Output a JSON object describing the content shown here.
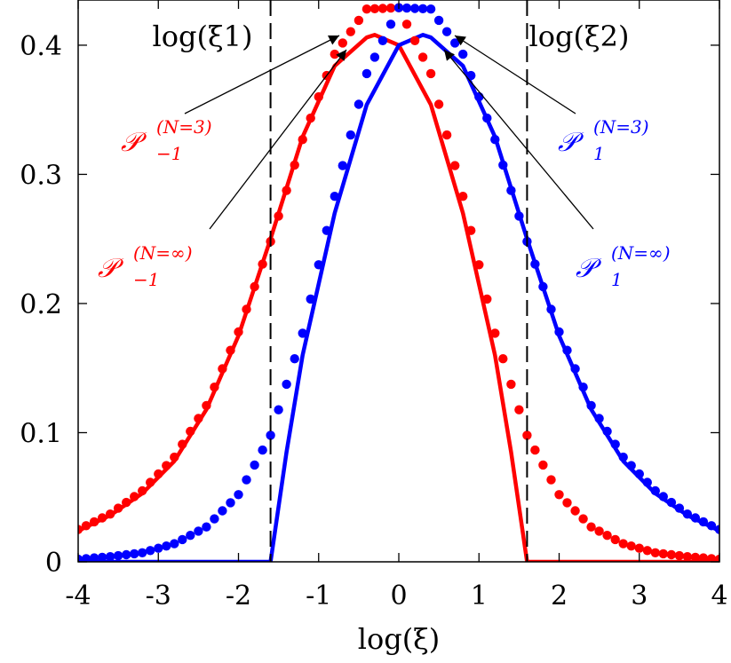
{
  "chart_data": {
    "type": "line",
    "xlabel": "log(ξ)",
    "ylabel": "",
    "xlim": [
      -4,
      4
    ],
    "ylim": [
      0,
      0.435
    ],
    "x_ticks": [
      "-4",
      "-3",
      "-2",
      "-1",
      "0",
      "1",
      "2",
      "3",
      "4"
    ],
    "y_ticks": [
      "0",
      "0.1",
      "0.2",
      "0.3",
      "0.4"
    ],
    "y_tick_values": [
      0,
      0.1,
      0.2,
      0.3,
      0.4
    ],
    "vlines": [
      {
        "label": "log(ξ1)",
        "x": -1.6
      },
      {
        "label": "log(ξ2)",
        "x": 1.6
      }
    ],
    "colors": {
      "red": "#ff0000",
      "blue": "#0000ff"
    },
    "series": [
      {
        "name": "𝒫-1(N=3)",
        "style": "solid",
        "color": "red",
        "x": [
          -4,
          -3.6,
          -3.2,
          -2.8,
          -2.4,
          -2.0,
          -1.6,
          -1.2,
          -0.8,
          -0.4,
          -0.3,
          0.0,
          0.4,
          0.8,
          1.2,
          1.4,
          1.6,
          2.0,
          3.0,
          4.0
        ],
        "y": [
          0.024,
          0.036,
          0.053,
          0.078,
          0.118,
          0.175,
          0.25,
          0.329,
          0.384,
          0.406,
          0.408,
          0.4,
          0.354,
          0.27,
          0.16,
          0.085,
          0.0,
          0.0,
          0.0,
          0.0
        ]
      },
      {
        "name": "𝒫1(N=3)",
        "style": "solid",
        "color": "blue",
        "x": [
          -4.0,
          -3.0,
          -2.0,
          -1.6,
          -1.4,
          -1.2,
          -0.8,
          -0.4,
          0.0,
          0.3,
          0.4,
          0.8,
          1.2,
          1.6,
          2.0,
          2.4,
          2.8,
          3.2,
          3.6,
          4.0
        ],
        "y": [
          0.0,
          0.0,
          0.0,
          0.0,
          0.085,
          0.16,
          0.27,
          0.354,
          0.4,
          0.408,
          0.406,
          0.384,
          0.329,
          0.25,
          0.175,
          0.118,
          0.078,
          0.053,
          0.036,
          0.024
        ]
      },
      {
        "name": "𝒫-1(N=∞)",
        "style": "dotted",
        "color": "red",
        "x": [
          -4.0,
          -3.6,
          -3.2,
          -2.8,
          -2.4,
          -2.0,
          -1.6,
          -1.2,
          -0.8,
          -0.4,
          0.0,
          0.4,
          0.8,
          1.2,
          1.6,
          2.0,
          2.4,
          2.8,
          3.2,
          3.6,
          4.0
        ],
        "y": [
          0.025,
          0.037,
          0.055,
          0.081,
          0.121,
          0.178,
          0.248,
          0.327,
          0.393,
          0.428,
          0.429,
          0.378,
          0.283,
          0.177,
          0.098,
          0.052,
          0.027,
          0.014,
          0.007,
          0.004,
          0.002
        ]
      },
      {
        "name": "𝒫1(N=∞)",
        "style": "dotted",
        "color": "blue",
        "x": [
          -4.0,
          -3.6,
          -3.2,
          -2.8,
          -2.4,
          -2.0,
          -1.6,
          -1.2,
          -0.8,
          -0.4,
          0.0,
          0.4,
          0.8,
          1.2,
          1.6,
          2.0,
          2.4,
          2.8,
          3.2,
          3.6,
          4.0
        ],
        "y": [
          0.002,
          0.004,
          0.007,
          0.014,
          0.027,
          0.052,
          0.098,
          0.177,
          0.283,
          0.378,
          0.429,
          0.428,
          0.393,
          0.327,
          0.248,
          0.178,
          0.121,
          0.081,
          0.055,
          0.037,
          0.025
        ]
      }
    ],
    "annotations": [
      {
        "base": "𝒫",
        "sub": "−1",
        "sup": "(N=3)",
        "color": "red"
      },
      {
        "base": "𝒫",
        "sub": "−1",
        "sup": "(N=∞)",
        "color": "red"
      },
      {
        "base": "𝒫",
        "sub": "1",
        "sup": "(N=3)",
        "color": "blue"
      },
      {
        "base": "𝒫",
        "sub": "1",
        "sup": "(N=∞)",
        "color": "blue"
      }
    ]
  }
}
